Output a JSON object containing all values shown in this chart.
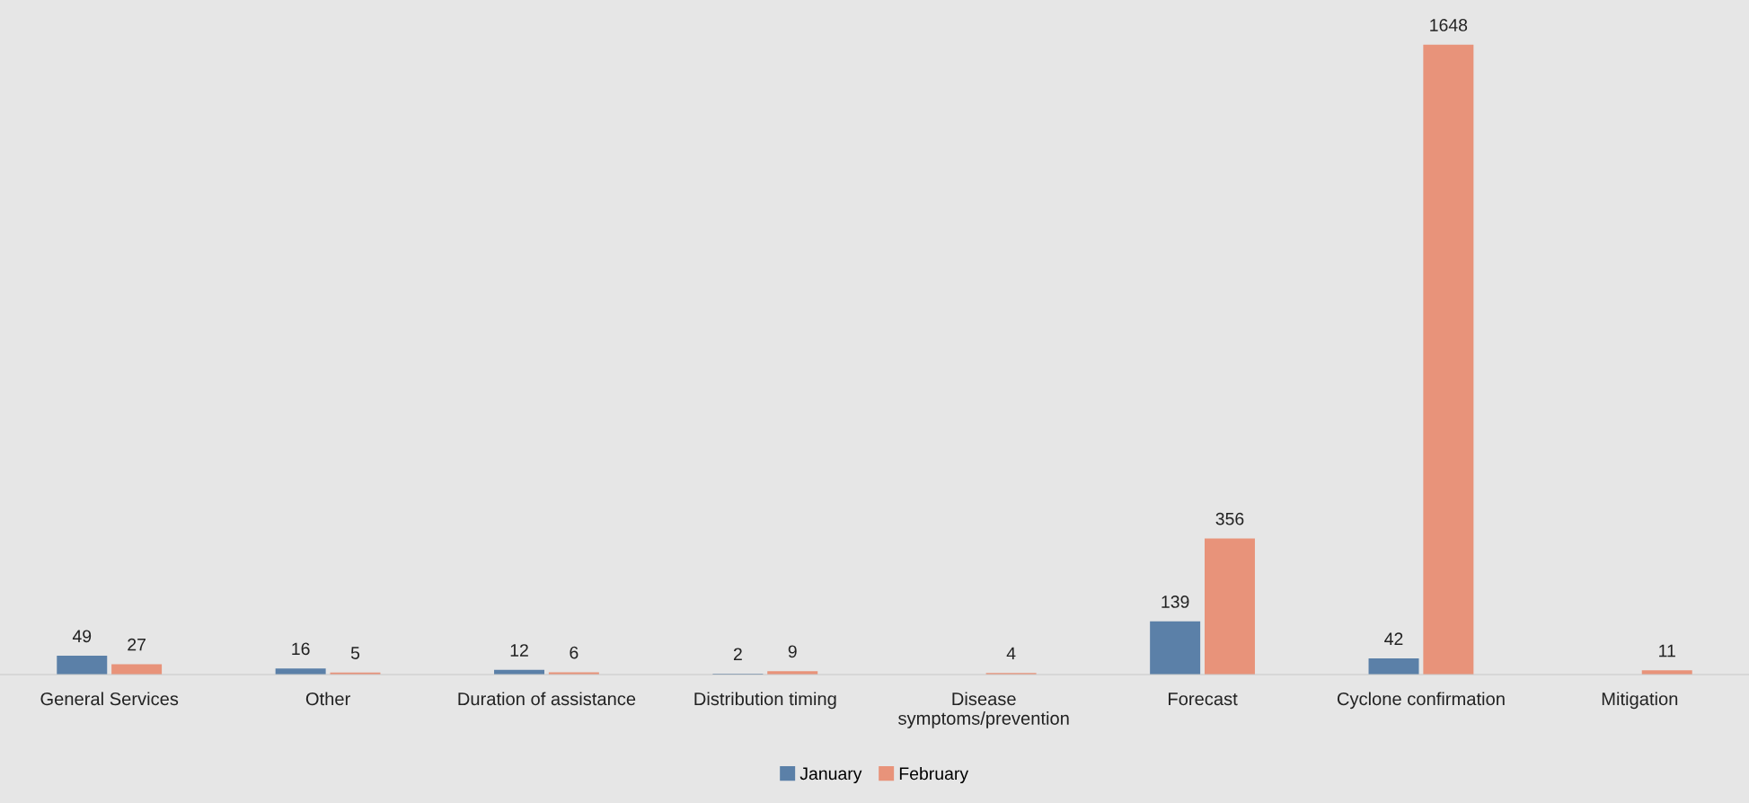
{
  "chart_data": {
    "type": "bar",
    "categories": [
      "General Services",
      "Other",
      "Duration of assistance",
      "Distribution timing",
      "Disease symptoms/prevention",
      "Forecast",
      "Cyclone confirmation",
      "Mitigation"
    ],
    "series": [
      {
        "name": "January",
        "color": "#5b80a8",
        "values": [
          49,
          16,
          12,
          2,
          null,
          139,
          42,
          null
        ]
      },
      {
        "name": "February",
        "color": "#e8937a",
        "values": [
          27,
          5,
          6,
          9,
          4,
          356,
          1648,
          11
        ]
      }
    ],
    "data_labels": true,
    "legend": "bottom",
    "grid": false,
    "tick_labels": "x"
  }
}
